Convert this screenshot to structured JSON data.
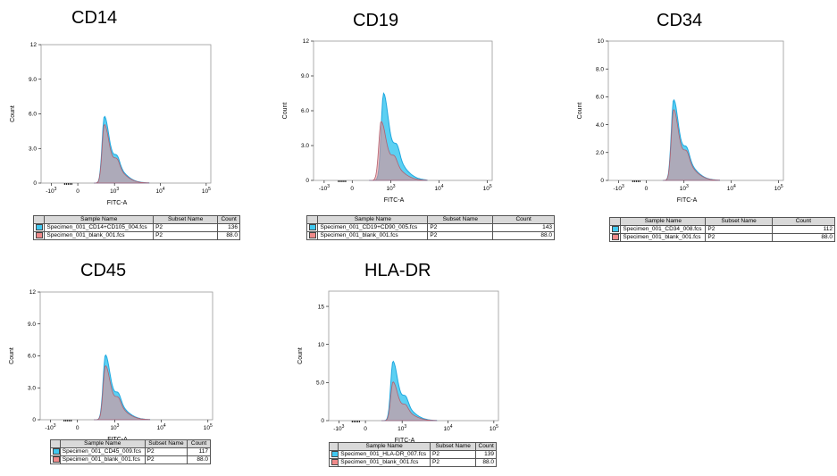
{
  "legend_headers": {
    "sample": "Sample Name",
    "subset": "Subset Name",
    "count": "Count"
  },
  "colors": {
    "stained": "#40c8f0",
    "blank": "#f08a8a",
    "overlap": "#7a94b0"
  },
  "chart_data": [
    {
      "type": "area",
      "title": "CD14",
      "xlabel": "FITC-A",
      "ylabel": "Count",
      "xscale": "biexponential",
      "x_ticks": [
        "-10^3",
        "0",
        "10^3",
        "10^4",
        "10^5"
      ],
      "y_ticks": [
        "0",
        "3.0",
        "6.0",
        "9.0",
        "12"
      ],
      "ylim": [
        0,
        12
      ],
      "series": [
        {
          "name": "Specimen_001_CD14+CD105_004.fcs",
          "subset": "P2",
          "count": "136",
          "peak_log": 2.78,
          "peak": 5.8
        },
        {
          "name": "Specimen_001_blank_001.fcs",
          "subset": "P2",
          "count": "88.0",
          "peak_log": 2.78,
          "peak": 5.1
        }
      ]
    },
    {
      "type": "area",
      "title": "CD19",
      "xlabel": "FITC-A",
      "ylabel": "Count",
      "xscale": "biexponential",
      "x_ticks": [
        "-10^3",
        "0",
        "10^3",
        "10^4",
        "10^5"
      ],
      "y_ticks": [
        "0",
        "3.0",
        "6.0",
        "9.0",
        "12"
      ],
      "ylim": [
        0,
        12
      ],
      "series": [
        {
          "name": "Specimen_001_CD19+CD90_005.fcs",
          "subset": "P2",
          "count": "143",
          "peak_log": 2.85,
          "peak": 7.5
        },
        {
          "name": "Specimen_001_blank_001.fcs",
          "subset": "P2",
          "count": "88.0",
          "peak_log": 2.8,
          "peak": 5.1
        }
      ]
    },
    {
      "type": "area",
      "title": "CD34",
      "xlabel": "FITC-A",
      "ylabel": "Count",
      "xscale": "biexponential",
      "x_ticks": [
        "-10^3",
        "0",
        "10^3",
        "10^4",
        "10^5"
      ],
      "y_ticks": [
        "0",
        "2.0",
        "4.0",
        "6.0",
        "8.0",
        "10"
      ],
      "ylim": [
        0,
        10
      ],
      "series": [
        {
          "name": "Specimen_001_CD34_008.fcs",
          "subset": "P2",
          "count": "112",
          "peak_log": 2.78,
          "peak": 5.8
        },
        {
          "name": "Specimen_001_blank_001.fcs",
          "subset": "P2",
          "count": "88.0",
          "peak_log": 2.78,
          "peak": 5.1
        }
      ]
    },
    {
      "type": "area",
      "title": "CD45",
      "xlabel": "FITC-A",
      "ylabel": "Count",
      "xscale": "biexponential",
      "x_ticks": [
        "-10^3",
        "0",
        "10^3",
        "10^4",
        "10^5"
      ],
      "y_ticks": [
        "0",
        "3.0",
        "6.0",
        "9.0",
        "12"
      ],
      "ylim": [
        0,
        12
      ],
      "series": [
        {
          "name": "Specimen_001_CD45_009.fcs",
          "subset": "P2",
          "count": "117",
          "peak_log": 2.8,
          "peak": 6.1
        },
        {
          "name": "Specimen_001_blank_001.fcs",
          "subset": "P2",
          "count": "88.0",
          "peak_log": 2.8,
          "peak": 5.1
        }
      ]
    },
    {
      "type": "area",
      "title": "HLA-DR",
      "xlabel": "FITC-A",
      "ylabel": "Count",
      "xscale": "biexponential",
      "x_ticks": [
        "-10^3",
        "0",
        "10^3",
        "10^4",
        "10^5"
      ],
      "y_ticks": [
        "0",
        "5.0",
        "10",
        "15"
      ],
      "ylim": [
        0,
        17
      ],
      "series": [
        {
          "name": "Specimen_001_HLA-DR_007.fcs",
          "subset": "P2",
          "count": "139",
          "peak_log": 2.8,
          "peak": 7.8
        },
        {
          "name": "Specimen_001_blank_001.fcs",
          "subset": "P2",
          "count": "88.0",
          "peak_log": 2.8,
          "peak": 5.1
        }
      ]
    }
  ]
}
